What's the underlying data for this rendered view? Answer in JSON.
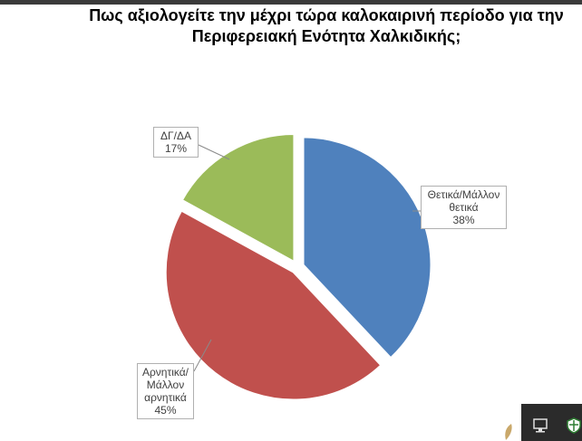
{
  "chart_data": {
    "type": "pie",
    "title_lines": [
      "Πως αξιολογείτε την μέχρι τώρα καλοκαιρινή περίοδο για την",
      "Περιφερειακή Ενότητα Χαλκιδικής;"
    ],
    "slices": [
      {
        "label_lines": [
          "Θετικά/Μάλλον",
          "θετικά"
        ],
        "value": 38,
        "value_label": "38%",
        "color": "#4F81BD"
      },
      {
        "label_lines": [
          "Αρνητικά/",
          "Μάλλον",
          "αρνητικά"
        ],
        "value": 45,
        "value_label": "45%",
        "color": "#C0504D"
      },
      {
        "label_lines": [
          "ΔΓ/ΔΑ"
        ],
        "value": 17,
        "value_label": "17%",
        "color": "#9BBB59"
      }
    ],
    "start": "12 o'clock",
    "direction": "clockwise",
    "exploded": true
  },
  "taskbar": {
    "icons": [
      "monitor-icon",
      "shield-icon"
    ]
  }
}
